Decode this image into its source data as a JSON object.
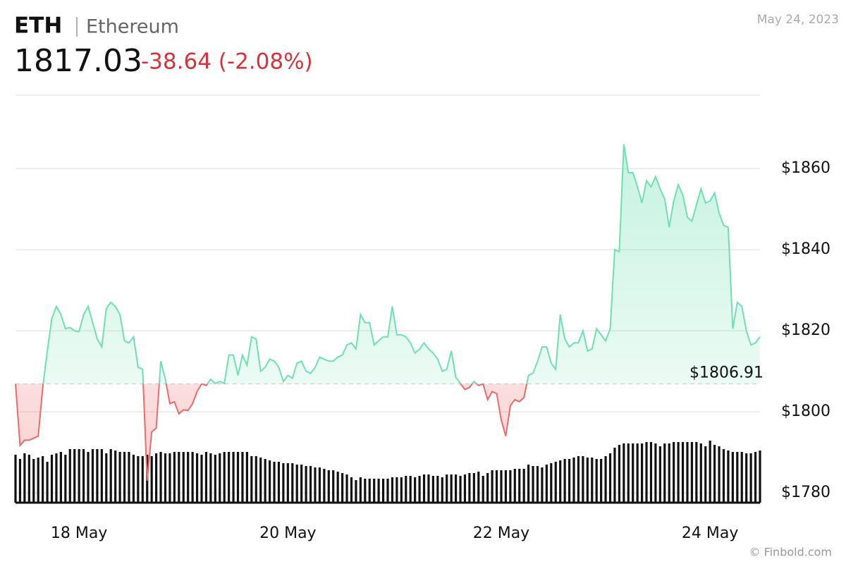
{
  "chart_data": {
    "type": "line",
    "symbol": "ETH",
    "name": "Ethereum",
    "price": 1817.03,
    "change": -38.64,
    "change_label": "-38.64 (-2.08%)",
    "date": "May 24, 2023",
    "credit": "© Finbold.com",
    "baseline": 1806.91,
    "baseline_label": "$1806.91",
    "up_color": "#6fe0b2",
    "down_color": "#ee6a6a",
    "volume_color": "#111111",
    "grid": true,
    "ylim": [
      1777.6,
      1878.1
    ],
    "yticks": [
      {
        "value": 1780,
        "label": "$1780"
      },
      {
        "value": 1800,
        "label": "$1800"
      },
      {
        "value": 1820,
        "label": "$1820"
      },
      {
        "value": 1840,
        "label": "$1840"
      },
      {
        "value": 1860,
        "label": "$1860"
      }
    ],
    "categories": [
      null,
      null,
      null,
      null,
      null,
      null,
      null,
      null,
      null,
      null,
      null,
      null,
      null,
      null,
      "18 May",
      null,
      null,
      null,
      null,
      null,
      null,
      null,
      null,
      null,
      null,
      null,
      null,
      null,
      null,
      null,
      null,
      null,
      null,
      null,
      null,
      null,
      null,
      null,
      null,
      null,
      null,
      null,
      null,
      null,
      null,
      null,
      null,
      null,
      null,
      null,
      null,
      null,
      null,
      null,
      null,
      null,
      null,
      null,
      null,
      null,
      "20 May",
      null,
      null,
      null,
      null,
      null,
      null,
      null,
      null,
      null,
      null,
      null,
      null,
      null,
      null,
      null,
      null,
      null,
      null,
      null,
      null,
      null,
      null,
      null,
      null,
      null,
      null,
      null,
      null,
      null,
      null,
      null,
      null,
      null,
      null,
      null,
      null,
      null,
      null,
      null,
      null,
      null,
      null,
      null,
      null,
      null,
      null,
      "22 May",
      null,
      null,
      null,
      null,
      null,
      null,
      null,
      null,
      null,
      null,
      null,
      null,
      null,
      null,
      null,
      null,
      null,
      null,
      null,
      null,
      null,
      null,
      null,
      null,
      null,
      null,
      null,
      null,
      null,
      null,
      null,
      null,
      null,
      null,
      null,
      null,
      null,
      null,
      null,
      null,
      null,
      null,
      null,
      null,
      null,
      "24 May",
      null,
      null,
      null,
      null,
      null,
      null,
      null,
      null,
      null,
      null,
      null
    ],
    "values": [
      1806.9,
      1791.7,
      1793,
      1793,
      1793.5,
      1794,
      1806,
      1815,
      1823,
      1826,
      1824,
      1820.5,
      1820.8,
      1820,
      1819.8,
      1824,
      1826,
      1822,
      1818,
      1816,
      1825.5,
      1827,
      1826,
      1824,
      1817.5,
      1817,
      1818.5,
      1811,
      1810.5,
      1783,
      1795,
      1796,
      1812.5,
      1808,
      1802,
      1802.5,
      1799.5,
      1800.5,
      1800.3,
      1802,
      1805,
      1806.9,
      1806.5,
      1808,
      1807,
      1807.5,
      1807,
      1814,
      1814,
      1809,
      1814,
      1811.5,
      1818.5,
      1818,
      1810,
      1811,
      1813,
      1812.5,
      1811,
      1807.5,
      1809,
      1808.3,
      1812,
      1812.5,
      1810,
      1809.5,
      1811,
      1813.5,
      1813,
      1812.5,
      1812.5,
      1813.5,
      1814,
      1816.5,
      1817,
      1815.5,
      1824,
      1822,
      1822,
      1816.5,
      1817.5,
      1818.5,
      1818.5,
      1826,
      1819,
      1819,
      1818.5,
      1817,
      1814.5,
      1815.5,
      1817,
      1815.5,
      1814.5,
      1813,
      1810,
      1810.5,
      1815,
      1808.5,
      1807,
      1805.5,
      1806,
      1807.5,
      1806.5,
      1806.9,
      1803,
      1805,
      1804.5,
      1798,
      1794,
      1801.5,
      1803,
      1802.5,
      1803.5,
      1809,
      1809.5,
      1812.5,
      1816,
      1816,
      1812,
      1810.5,
      1824,
      1818,
      1816,
      1817,
      1817,
      1820,
      1815,
      1815.5,
      1820.5,
      1819,
      1817.5,
      1820.5,
      1840,
      1839.5,
      1866,
      1859,
      1859,
      1855.5,
      1851.5,
      1857,
      1855.5,
      1858,
      1855,
      1852.5,
      1845.5,
      1852,
      1856,
      1853.5,
      1848,
      1847,
      1851,
      1855,
      1851.5,
      1852,
      1854,
      1849,
      1846,
      1845.5,
      1820.5,
      1827,
      1826,
      1820,
      1816.5,
      1817,
      1818.5
    ],
    "volume": [
      68,
      62,
      70,
      68,
      62,
      64,
      66,
      58,
      68,
      70,
      72,
      68,
      76,
      76,
      76,
      76,
      72,
      76,
      76,
      76,
      70,
      76,
      74,
      72,
      72,
      72,
      68,
      66,
      66,
      68,
      66,
      70,
      72,
      70,
      70,
      72,
      72,
      72,
      72,
      72,
      70,
      68,
      72,
      70,
      68,
      70,
      72,
      72,
      72,
      72,
      72,
      72,
      66,
      66,
      64,
      62,
      60,
      58,
      58,
      56,
      56,
      56,
      54,
      54,
      52,
      52,
      50,
      50,
      48,
      46,
      46,
      44,
      42,
      40,
      36,
      32,
      36,
      34,
      34,
      34,
      34,
      34,
      34,
      36,
      36,
      36,
      38,
      38,
      36,
      38,
      40,
      40,
      38,
      38,
      36,
      40,
      40,
      40,
      38,
      40,
      42,
      42,
      44,
      38,
      42,
      46,
      46,
      46,
      46,
      46,
      48,
      48,
      48,
      54,
      52,
      52,
      50,
      54,
      56,
      58,
      60,
      62,
      62,
      64,
      66,
      66,
      64,
      64,
      62,
      62,
      66,
      70,
      78,
      82,
      84,
      84,
      84,
      84,
      84,
      86,
      86,
      84,
      80,
      84,
      84,
      86,
      86,
      86,
      86,
      86,
      86,
      84,
      80,
      88,
      82,
      80,
      76,
      74,
      72,
      72,
      72,
      70,
      70,
      72,
      74
    ]
  }
}
